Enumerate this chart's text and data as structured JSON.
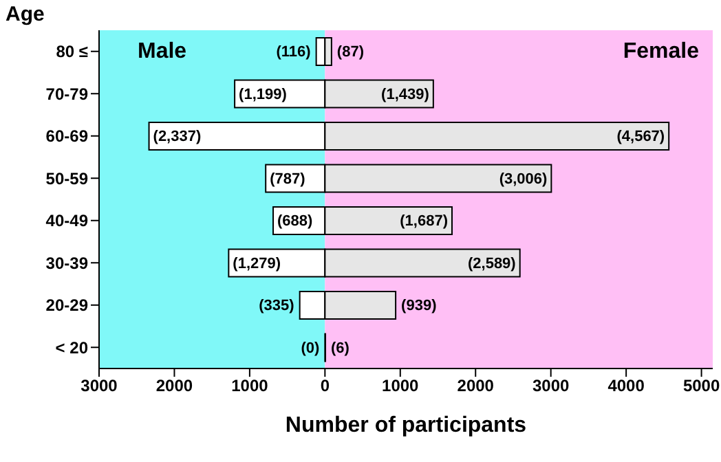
{
  "chart_data": {
    "type": "bar",
    "orientation": "horizontal",
    "stacked": true,
    "ylabel": "Age",
    "xlabel": "Number of participants",
    "categories": [
      "80 ≤",
      "70-79",
      "60-69",
      "50-59",
      "40-49",
      "30-39",
      "20-29",
      "< 20"
    ],
    "series": [
      {
        "color": "#ffffff",
        "values": [
          -116,
          -1199,
          -2337,
          -787,
          -688,
          -1279,
          -335,
          0
        ],
        "value_labels": [
          "(116)",
          "(1,199)",
          "(2,337)",
          "(787)",
          "(688)",
          "(1,279)",
          "(335)",
          "(0)"
        ]
      },
      {
        "color": "#e6e6e6",
        "values": [
          87,
          1439,
          4567,
          3006,
          1687,
          2589,
          939,
          6
        ],
        "value_labels": [
          "(87)",
          "(1,439)",
          "(4,567)",
          "(3,006)",
          "(1,687)",
          "(2,589)",
          "(939)",
          "(6)"
        ]
      }
    ],
    "xlim": [
      -3000,
      5150
    ],
    "xticks": [
      {
        "value": -3000,
        "label": "3000"
      },
      {
        "value": -2000,
        "label": "2000"
      },
      {
        "value": -1000,
        "label": "1000"
      },
      0,
      1000,
      2000,
      3000,
      4000,
      5000
    ],
    "bands": [
      {
        "axis": "x",
        "from": -3000,
        "to": 0,
        "label": "Male",
        "color": "#80f8f8"
      },
      {
        "axis": "x",
        "from": 0,
        "to": 5150,
        "label": "Female",
        "color": "#ffbff5"
      }
    ],
    "grid": false,
    "legend": false
  }
}
